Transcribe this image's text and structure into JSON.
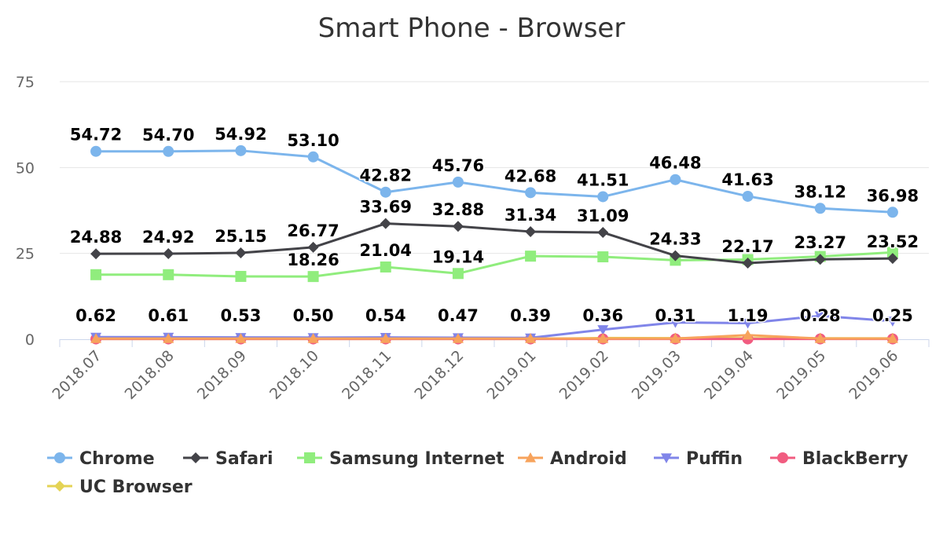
{
  "chart_data": {
    "type": "line",
    "title": "Smart Phone - Browser",
    "xlabel": "",
    "ylabel": "",
    "ylim": [
      0,
      75
    ],
    "yticks": [
      "0",
      "25",
      "50",
      "75"
    ],
    "grid": true,
    "legend": "bottom",
    "categories": [
      "2018.07",
      "2018.08",
      "2018.09",
      "2018.10",
      "2018.11",
      "2018.12",
      "2019.01",
      "2019.02",
      "2019.03",
      "2019.04",
      "2019.05",
      "2019.06"
    ],
    "series": [
      {
        "name": "Chrome",
        "color": "#7cb5ec",
        "marker": "circle",
        "values": [
          54.72,
          54.7,
          54.92,
          53.1,
          42.82,
          45.76,
          42.68,
          41.51,
          46.48,
          41.63,
          38.12,
          36.98
        ],
        "labels": [
          "54.72",
          "54.70",
          "54.92",
          "53.10",
          "42.82",
          "45.76",
          "42.68",
          "41.51",
          "46.48",
          "41.63",
          "38.12",
          "36.98"
        ]
      },
      {
        "name": "Safari",
        "color": "#434348",
        "marker": "diamond",
        "values": [
          24.88,
          24.92,
          25.15,
          26.77,
          33.69,
          32.88,
          31.34,
          31.09,
          24.33,
          22.17,
          23.27,
          23.52
        ],
        "labels": [
          "24.88",
          "24.92",
          "25.15",
          "26.77",
          "33.69",
          "32.88",
          "31.34",
          "31.09",
          "24.33",
          "22.17",
          "23.27",
          "23.52"
        ]
      },
      {
        "name": "Samsung Internet",
        "color": "#90ed7d",
        "marker": "square",
        "values": [
          18.8,
          18.8,
          18.3,
          18.26,
          21.04,
          19.14,
          24.2,
          24.0,
          23.0,
          23.2,
          24.1,
          25.3
        ],
        "labels": [
          "",
          "",
          "",
          "18.26",
          "21.04",
          "19.14",
          "",
          "",
          "",
          "",
          "",
          ""
        ]
      },
      {
        "name": "Android",
        "color": "#f7a35c",
        "marker": "triangle",
        "values": [
          0.2,
          0.2,
          0.2,
          0.2,
          0.2,
          0.2,
          0.2,
          0.2,
          0.2,
          1.19,
          0.2,
          0.2
        ],
        "labels": [
          "",
          "",
          "",
          "",
          "",
          "",
          "",
          "",
          "",
          "1.19",
          "",
          ""
        ]
      },
      {
        "name": "Puffin",
        "color": "#8085e9",
        "marker": "triangle-down",
        "values": [
          0.62,
          0.61,
          0.53,
          0.5,
          0.54,
          0.47,
          0.39,
          2.8,
          4.9,
          4.7,
          6.8,
          5.3
        ],
        "labels": [
          "0.62",
          "0.61",
          "0.53",
          "0.50",
          "0.54",
          "0.47",
          "0.39",
          "",
          "",
          "",
          "",
          ""
        ]
      },
      {
        "name": "BlackBerry",
        "color": "#f15c80",
        "marker": "circle",
        "values": [
          0.1,
          0.1,
          0.1,
          0.1,
          0.1,
          0.1,
          0.1,
          0.1,
          0.1,
          0.1,
          0.1,
          0.1
        ],
        "labels": [
          "",
          "",
          "",
          "",
          "",
          "",
          "",
          "",
          "",
          "",
          "",
          ""
        ]
      },
      {
        "name": "UC Browser",
        "color": "#e4d354",
        "marker": "diamond",
        "values": [
          0.1,
          0.1,
          0.1,
          0.1,
          0.1,
          0.1,
          0.1,
          0.36,
          0.31,
          0.3,
          0.28,
          0.25
        ],
        "labels": [
          "",
          "",
          "",
          "",
          "",
          "",
          "",
          "0.36",
          "0.31",
          "",
          "0.28",
          "0.25"
        ]
      }
    ]
  }
}
